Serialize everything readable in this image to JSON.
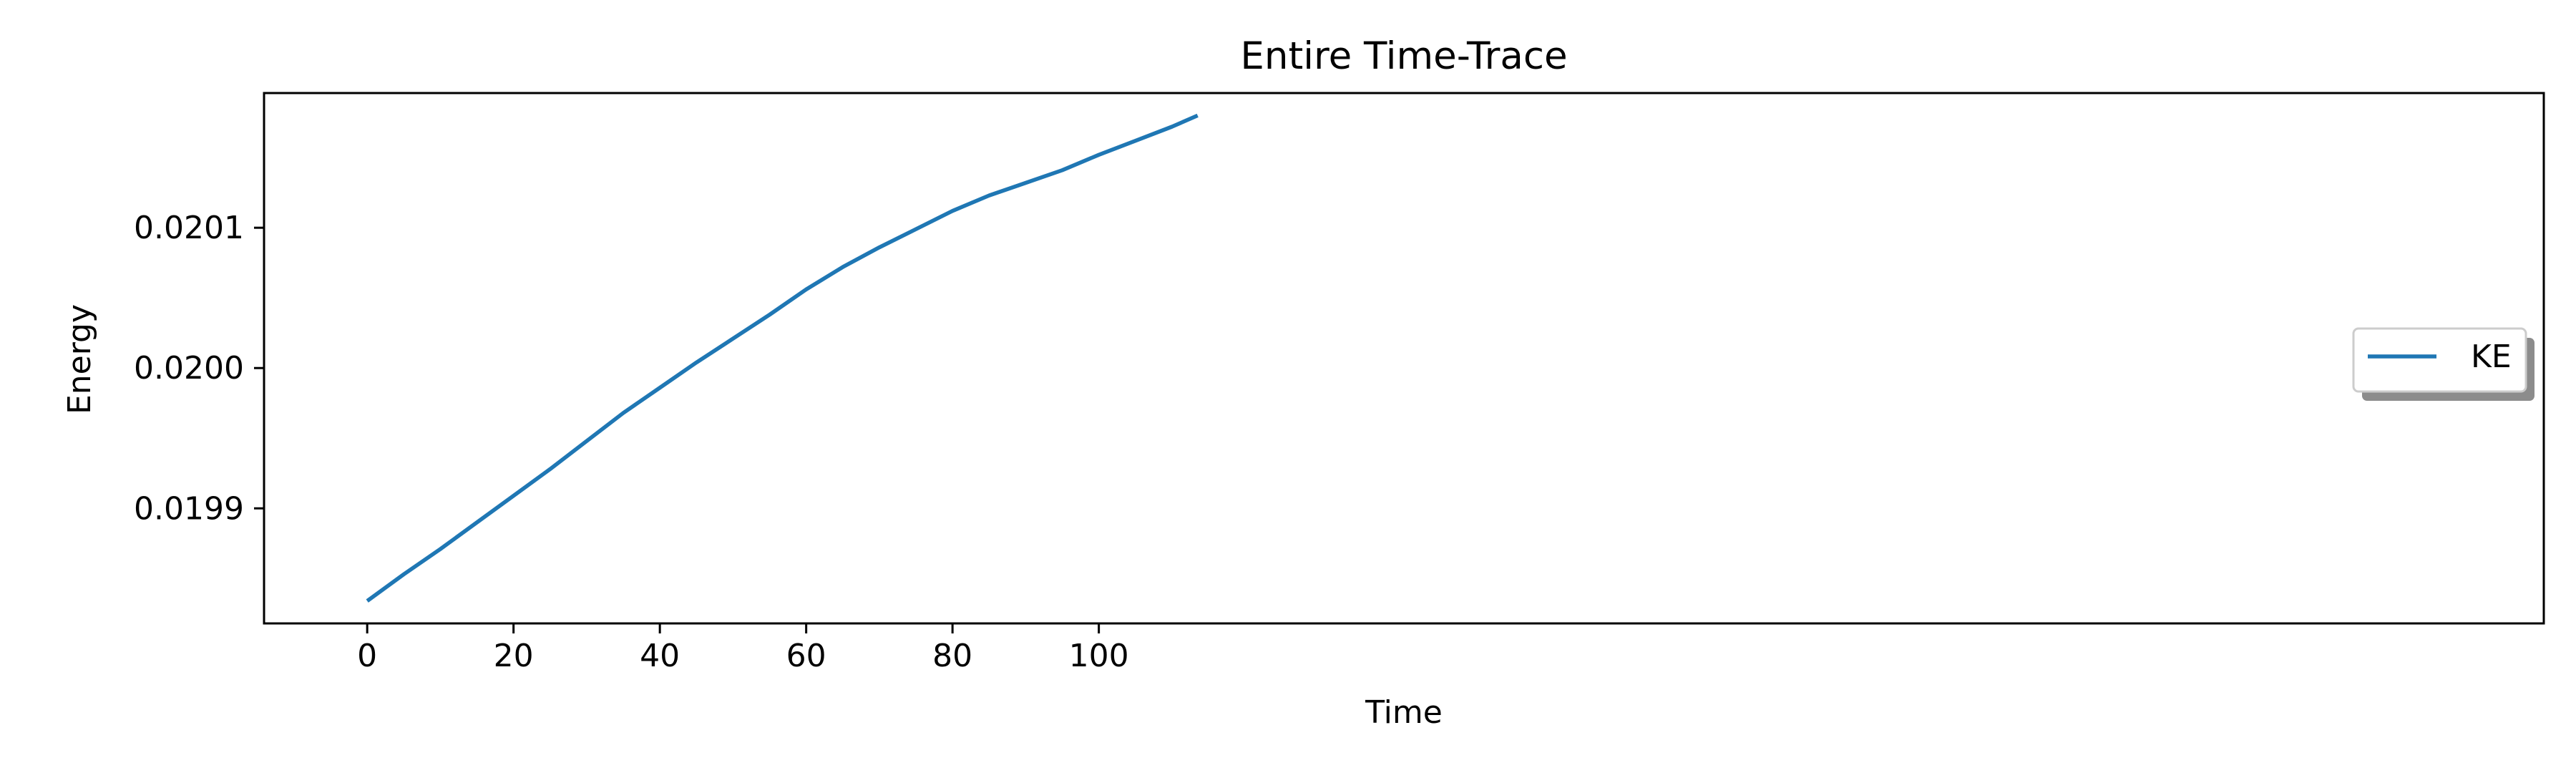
{
  "chart_data": {
    "type": "line",
    "title": "Entire Time-Trace",
    "xlabel": "Time",
    "ylabel": "Energy",
    "xlim": [
      -14.1,
      297.5
    ],
    "ylim": [
      0.019818,
      0.020196
    ],
    "xticks": [
      0,
      20,
      40,
      60,
      80,
      100
    ],
    "xtick_labels": [
      "0",
      "20",
      "40",
      "60",
      "80",
      "100"
    ],
    "yticks": [
      0.0199,
      0.02,
      0.0201
    ],
    "ytick_labels": [
      "0.0199",
      "0.0200",
      "0.0201"
    ],
    "grid": false,
    "legend_position": "center-right",
    "series": [
      {
        "name": "KE",
        "color": "#1f77b4",
        "x": [
          0,
          5,
          10,
          15,
          20,
          25,
          30,
          35,
          40,
          45,
          50,
          55,
          60,
          65,
          70,
          75,
          80,
          85,
          90,
          95,
          100,
          105,
          110,
          113.5
        ],
        "y": [
          0.019834,
          0.019853,
          0.019871,
          0.01989,
          0.019909,
          0.019928,
          0.019948,
          0.019968,
          0.019986,
          0.020004,
          0.020021,
          0.020038,
          0.020056,
          0.020072,
          0.020086,
          0.020099,
          0.020112,
          0.020123,
          0.020132,
          0.020141,
          0.020152,
          0.020162,
          0.020172,
          0.02018
        ]
      }
    ]
  }
}
